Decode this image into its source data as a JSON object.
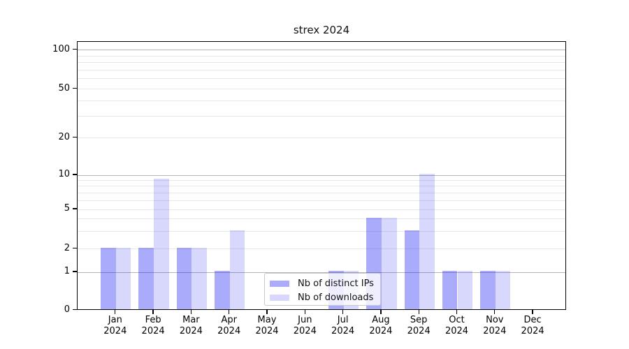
{
  "chart_data": {
    "type": "bar",
    "title": "strex 2024",
    "categories": [
      "Jan 2024",
      "Feb 2024",
      "Mar 2024",
      "Apr 2024",
      "May 2024",
      "Jun 2024",
      "Jul 2024",
      "Aug 2024",
      "Sep 2024",
      "Oct 2024",
      "Nov 2024",
      "Dec 2024"
    ],
    "series": [
      {
        "name": "Nb of distinct IPs",
        "color": "rgba(15,15,245,0.35)",
        "values": [
          2,
          2,
          2,
          1,
          0,
          0,
          1,
          4,
          3,
          1,
          1,
          0
        ]
      },
      {
        "name": "Nb of downloads",
        "color": "rgba(15,15,245,0.16)",
        "values": [
          2,
          9,
          2,
          3,
          0,
          0,
          1,
          4,
          10,
          1,
          1,
          0
        ]
      }
    ],
    "yaxis": {
      "scale": "symlog",
      "range": [
        0,
        100
      ],
      "ticks": [
        0,
        1,
        2,
        5,
        10,
        20,
        50,
        100
      ],
      "major_gridlines": [
        1,
        10,
        100
      ],
      "minor_gridlines": [
        2,
        3,
        4,
        5,
        6,
        7,
        8,
        9,
        20,
        30,
        40,
        50,
        60,
        70,
        80,
        90
      ]
    },
    "xaxis": {
      "tick_label_format": "month newline year"
    },
    "legend": {
      "entries": [
        "Nb of distinct IPs",
        "Nb of downloads"
      ],
      "position": "lower center"
    },
    "colors": {
      "major_grid": "#b4b4b4",
      "minor_grid": "#e8e8e8",
      "spine": "#000000",
      "text": "#111111",
      "background": "#ffffff"
    }
  }
}
